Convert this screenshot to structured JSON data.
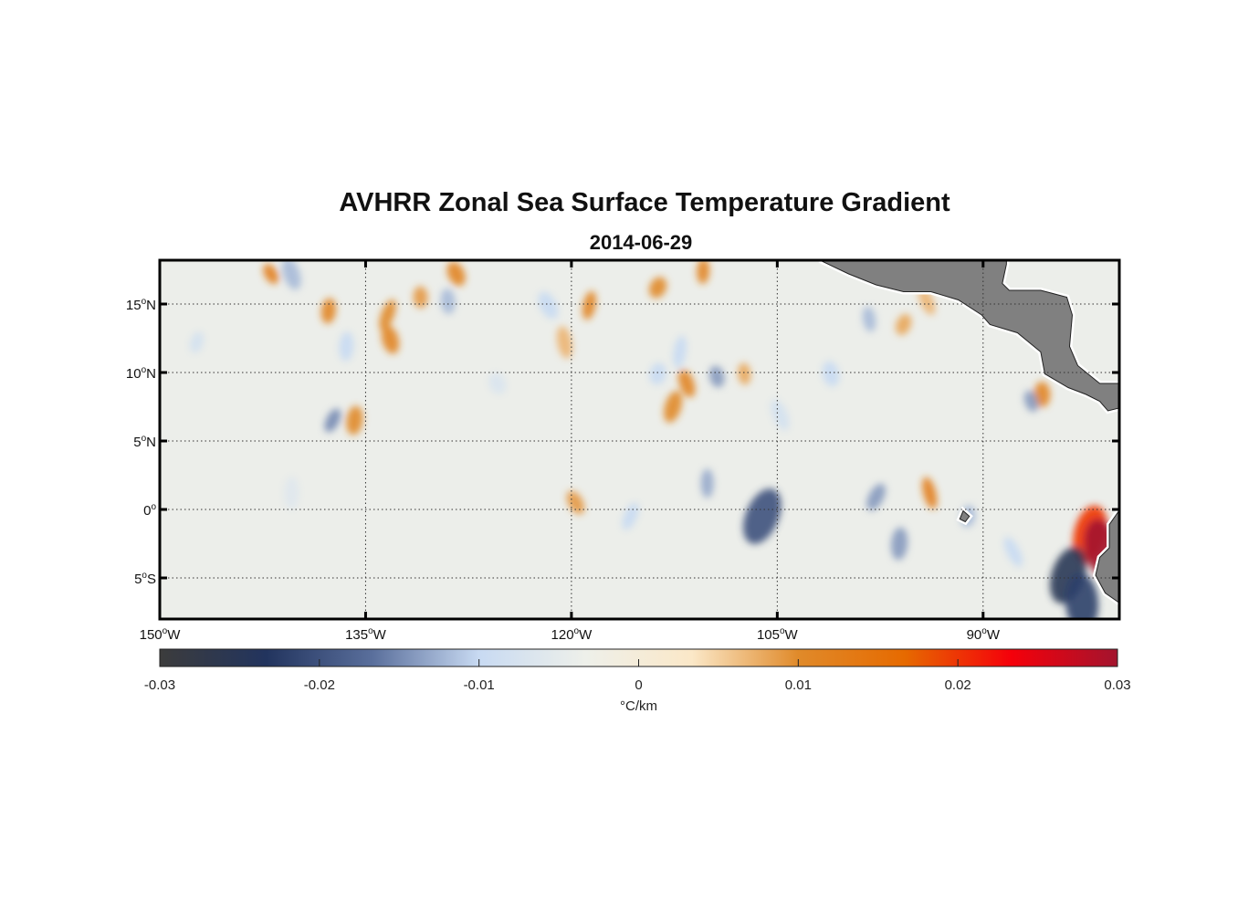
{
  "chart_data": {
    "type": "heatmap",
    "title": "AVHRR Zonal Sea Surface Temperature Gradient",
    "subtitle": "2014-06-29",
    "lon_range": [
      -150,
      -80
    ],
    "lat_range": [
      -8,
      18.2
    ],
    "grid": true,
    "lat_ticks": [
      {
        "value": 15,
        "label": "15",
        "suffix": "N"
      },
      {
        "value": 10,
        "label": "10",
        "suffix": "N"
      },
      {
        "value": 5,
        "label": "5",
        "suffix": "N"
      },
      {
        "value": 0,
        "label": "0",
        "suffix": ""
      },
      {
        "value": -5,
        "label": "5",
        "suffix": "S"
      }
    ],
    "lon_ticks": [
      {
        "value": -150,
        "label": "150",
        "suffix": "W"
      },
      {
        "value": -135,
        "label": "135",
        "suffix": "W"
      },
      {
        "value": -120,
        "label": "120",
        "suffix": "W"
      },
      {
        "value": -105,
        "label": "105",
        "suffix": "W"
      },
      {
        "value": -90,
        "label": "90",
        "suffix": "W"
      }
    ],
    "colorbar": {
      "range": [
        -0.03,
        0.03
      ],
      "ticks": [
        {
          "value": -0.03,
          "label": "-0.03"
        },
        {
          "value": -0.02,
          "label": "-0.02"
        },
        {
          "value": -0.01,
          "label": "-0.01"
        },
        {
          "value": 0,
          "label": "0"
        },
        {
          "value": 0.01,
          "label": "0.01"
        },
        {
          "value": 0.02,
          "label": "0.02"
        },
        {
          "value": 0.03,
          "label": "0.03"
        }
      ],
      "unit_label": "°C/km",
      "colors": [
        "#3c3c3c",
        "#22345e",
        "#5a6f9c",
        "#c8daf2",
        "#eef0ea",
        "#fbe8c8",
        "#e08a2a",
        "#e66a00",
        "#f5000a",
        "#a3142e"
      ]
    },
    "background_value": 0,
    "features": [
      {
        "lon": -141.9,
        "lat": 17.2,
        "value": 0.012
      },
      {
        "lon": -137.7,
        "lat": 14.5,
        "value": 0.011
      },
      {
        "lon": -133.2,
        "lat": 12.4,
        "value": 0.011
      },
      {
        "lon": -133.4,
        "lat": 14.2,
        "value": 0.01
      },
      {
        "lon": -131.0,
        "lat": 15.5,
        "value": 0.009
      },
      {
        "lon": -128.4,
        "lat": 17.2,
        "value": 0.011
      },
      {
        "lon": -118.7,
        "lat": 14.9,
        "value": 0.011
      },
      {
        "lon": -120.5,
        "lat": 12.2,
        "value": 0.007
      },
      {
        "lon": -113.7,
        "lat": 16.2,
        "value": 0.01
      },
      {
        "lon": -110.4,
        "lat": 17.4,
        "value": 0.011
      },
      {
        "lon": -111.6,
        "lat": 9.2,
        "value": 0.011
      },
      {
        "lon": -112.6,
        "lat": 7.5,
        "value": 0.01
      },
      {
        "lon": -107.4,
        "lat": 9.9,
        "value": 0.008
      },
      {
        "lon": -119.7,
        "lat": 0.5,
        "value": 0.009
      },
      {
        "lon": -135.8,
        "lat": 6.5,
        "value": 0.01
      },
      {
        "lon": -93.9,
        "lat": 1.2,
        "value": 0.012
      },
      {
        "lon": -95.8,
        "lat": 13.5,
        "value": 0.008
      },
      {
        "lon": -85.7,
        "lat": 8.4,
        "value": 0.011
      },
      {
        "lon": -94.1,
        "lat": 15.2,
        "value": 0.007
      },
      {
        "lon": -82.2,
        "lat": -1.8,
        "value": 0.02
      },
      {
        "lon": -81.4,
        "lat": -2.8,
        "value": 0.03
      },
      {
        "lon": -137.4,
        "lat": 6.5,
        "value": -0.015
      },
      {
        "lon": -136.4,
        "lat": 11.9,
        "value": -0.01
      },
      {
        "lon": -140.4,
        "lat": 17.2,
        "value": -0.012
      },
      {
        "lon": -147.3,
        "lat": 12.2,
        "value": -0.008
      },
      {
        "lon": -129.0,
        "lat": 15.2,
        "value": -0.012
      },
      {
        "lon": -121.7,
        "lat": 14.9,
        "value": -0.01
      },
      {
        "lon": -112.1,
        "lat": 11.5,
        "value": -0.01
      },
      {
        "lon": -109.4,
        "lat": 9.7,
        "value": -0.014
      },
      {
        "lon": -106.1,
        "lat": -0.5,
        "value": -0.02
      },
      {
        "lon": -110.1,
        "lat": 1.9,
        "value": -0.013
      },
      {
        "lon": -104.8,
        "lat": 6.9,
        "value": -0.008
      },
      {
        "lon": -113.7,
        "lat": 9.9,
        "value": -0.01
      },
      {
        "lon": -98.3,
        "lat": 13.9,
        "value": -0.012
      },
      {
        "lon": -97.8,
        "lat": 0.9,
        "value": -0.014
      },
      {
        "lon": -96.1,
        "lat": -2.5,
        "value": -0.014
      },
      {
        "lon": -86.5,
        "lat": 7.9,
        "value": -0.014
      },
      {
        "lon": -83.8,
        "lat": -4.8,
        "value": -0.025
      },
      {
        "lon": -82.8,
        "lat": -6.8,
        "value": -0.022
      },
      {
        "lon": -87.8,
        "lat": -3.1,
        "value": -0.01
      },
      {
        "lon": -91.1,
        "lat": -0.5,
        "value": -0.012
      },
      {
        "lon": -101.1,
        "lat": 9.9,
        "value": -0.01
      },
      {
        "lon": -115.7,
        "lat": -0.5,
        "value": -0.01
      },
      {
        "lon": -140.4,
        "lat": 1.2,
        "value": -0.006
      },
      {
        "lon": -125.4,
        "lat": 9.2,
        "value": -0.007
      }
    ],
    "land": [
      [
        [
          -101.9,
          18.2
        ],
        [
          -88.3,
          18.2
        ],
        [
          -88.3,
          17.9
        ],
        [
          -88.6,
          16.5
        ],
        [
          -88.1,
          16
        ],
        [
          -85.8,
          16
        ],
        [
          -83.9,
          15.5
        ],
        [
          -83.5,
          14.2
        ],
        [
          -83.7,
          11.9
        ],
        [
          -83.1,
          10.5
        ],
        [
          -81.5,
          9.2
        ],
        [
          -80.1,
          9.2
        ],
        [
          -80.1,
          7.4
        ],
        [
          -80.9,
          7.2
        ],
        [
          -81.5,
          7.9
        ],
        [
          -82.5,
          8.4
        ],
        [
          -83.8,
          8.9
        ],
        [
          -85.5,
          9.9
        ],
        [
          -85.8,
          11.5
        ],
        [
          -87.5,
          12.9
        ],
        [
          -89.5,
          13.5
        ],
        [
          -90.1,
          14.2
        ],
        [
          -91.8,
          15.3
        ],
        [
          -93.8,
          15.9
        ],
        [
          -95.8,
          15.9
        ],
        [
          -97.8,
          16.4
        ],
        [
          -99.8,
          17.2
        ],
        [
          -101.9,
          18.2
        ]
      ],
      [
        [
          -80.1,
          -0.1
        ],
        [
          -80.8,
          -1.1
        ],
        [
          -80.8,
          -2.8
        ],
        [
          -81.5,
          -3.5
        ],
        [
          -81.8,
          -4.8
        ],
        [
          -81.1,
          -6.1
        ],
        [
          -80.1,
          -6.8
        ]
      ],
      [
        [
          -91.45,
          -0.1
        ],
        [
          -91.0,
          -0.5
        ],
        [
          -91.3,
          -0.9
        ],
        [
          -91.7,
          -0.7
        ]
      ]
    ],
    "land_color": "#808080",
    "ocean_color": "#eceeea"
  }
}
